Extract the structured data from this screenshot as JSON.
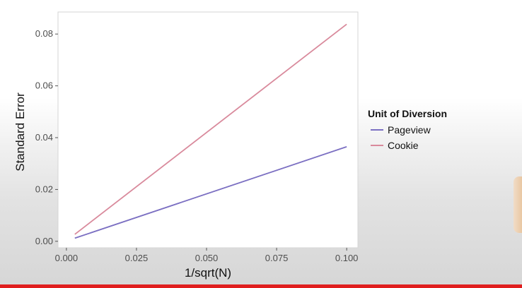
{
  "chart_data": {
    "type": "line",
    "xlabel": "1/sqrt(N)",
    "ylabel": "Standard Error",
    "xlim": [
      -0.003,
      0.104
    ],
    "ylim": [
      -0.0025,
      0.0885
    ],
    "xticks": [
      0.0,
      0.025,
      0.05,
      0.075,
      0.1
    ],
    "xtick_labels": [
      "0.000",
      "0.025",
      "0.050",
      "0.075",
      "0.100"
    ],
    "yticks": [
      0.0,
      0.02,
      0.04,
      0.06,
      0.08
    ],
    "ytick_labels": [
      "0.00",
      "0.02",
      "0.04",
      "0.06",
      "0.08"
    ],
    "grid": false,
    "legend_title": "Unit of Diversion",
    "legend_position": "right",
    "series": [
      {
        "name": "Pageview",
        "color": "#7b6fc2",
        "x": [
          0.003,
          0.1
        ],
        "y": [
          0.0012,
          0.0365
        ]
      },
      {
        "name": "Cookie",
        "color": "#d98a9c",
        "x": [
          0.003,
          0.1
        ],
        "y": [
          0.0027,
          0.0838
        ]
      }
    ]
  }
}
